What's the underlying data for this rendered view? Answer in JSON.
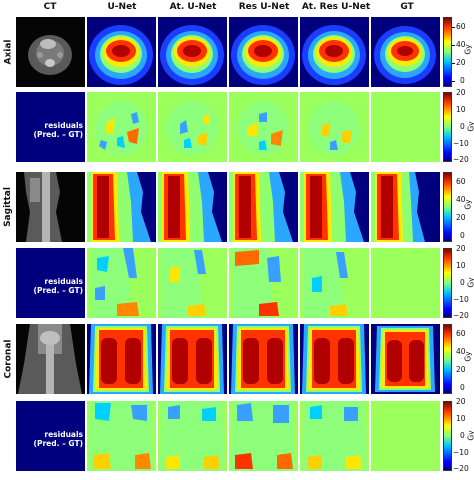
{
  "columns": [
    "CT",
    "U-Net",
    "At. U-Net",
    "Res U-Net",
    "At. Res U-Net",
    "GT"
  ],
  "rows": [
    "Axial",
    "Sagittal",
    "Coronal"
  ],
  "residual_label_line1": "residuals",
  "residual_label_line2": "(Pred. – GT)",
  "colorbar_unit": "Gy",
  "dose_ticks": [
    "60",
    "40",
    "20",
    "0"
  ],
  "residual_ticks": [
    "20",
    "10",
    "0",
    "−10",
    "−20"
  ],
  "colors": {
    "residual_background": "#00007f",
    "gt_residual_panel": "#9bff5c",
    "dose_background": "#00007f"
  }
}
